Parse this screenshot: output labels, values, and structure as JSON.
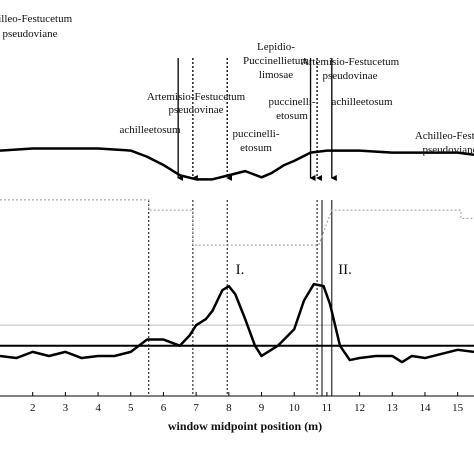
{
  "chart_data": {
    "type": "line",
    "x_label": "window midpoint position (m)",
    "xlim": [
      1,
      15.5
    ],
    "xticks": [
      2,
      3,
      4,
      5,
      6,
      7,
      8,
      9,
      10,
      11,
      12,
      13,
      14,
      15
    ],
    "ylim": [
      0,
      1.3
    ],
    "reference_lines": [
      {
        "value": 0.24,
        "color": "#000000",
        "width": 2
      },
      {
        "value": 0.34,
        "color": "#bbbbbb",
        "width": 1
      }
    ],
    "vlines": [
      {
        "x": 5.55,
        "style": "dotted"
      },
      {
        "x": 6.9,
        "style": "dotted"
      },
      {
        "x": 7.95,
        "style": "dotted"
      },
      {
        "x": 10.7,
        "style": "dotted"
      },
      {
        "x": 10.85,
        "style": "solid"
      },
      {
        "x": 11.15,
        "style": "solid"
      }
    ],
    "arrows": [
      {
        "x": 6.45,
        "style": "solid"
      },
      {
        "x": 6.9,
        "style": "dotted"
      },
      {
        "x": 7.95,
        "style": "dotted"
      },
      {
        "x": 10.5,
        "style": "solid"
      },
      {
        "x": 10.7,
        "style": "dotted"
      },
      {
        "x": 11.15,
        "style": "solid"
      }
    ],
    "series": [
      {
        "color": "#000000",
        "width": 2.5,
        "style": "solid",
        "x": [
          1,
          2,
          3,
          4,
          5,
          5.5,
          6,
          6.5,
          7,
          7.5,
          8,
          8.5,
          9,
          9.3,
          9.7,
          10,
          10.5,
          11,
          12,
          13,
          14,
          15,
          15.5
        ],
        "values": [
          1.19,
          1.2,
          1.2,
          1.2,
          1.19,
          1.16,
          1.12,
          1.07,
          1.05,
          1.05,
          1.07,
          1.09,
          1.06,
          1.08,
          1.12,
          1.14,
          1.18,
          1.19,
          1.19,
          1.18,
          1.18,
          1.18,
          1.17
        ]
      },
      {
        "color": "#000000",
        "width": 2.5,
        "style": "solid",
        "x": [
          1,
          1.5,
          2,
          2.5,
          3,
          3.5,
          4,
          4.5,
          5,
          5.5,
          6,
          6.5,
          6.8,
          7,
          7.3,
          7.5,
          7.8,
          8,
          8.2,
          8.5,
          8.8,
          9,
          9.5,
          10,
          10.3,
          10.6,
          10.9,
          11.1,
          11.4,
          11.7,
          12,
          12.5,
          13,
          13.3,
          13.6,
          14,
          14.5,
          15,
          15.5
        ],
        "values": [
          0.19,
          0.18,
          0.21,
          0.19,
          0.21,
          0.18,
          0.19,
          0.19,
          0.21,
          0.27,
          0.27,
          0.24,
          0.29,
          0.34,
          0.37,
          0.41,
          0.51,
          0.53,
          0.49,
          0.37,
          0.24,
          0.19,
          0.24,
          0.32,
          0.46,
          0.54,
          0.53,
          0.44,
          0.24,
          0.17,
          0.18,
          0.19,
          0.19,
          0.16,
          0.19,
          0.18,
          0.2,
          0.22,
          0.21
        ]
      },
      {
        "color": "#999999",
        "width": 1,
        "style": "dotted",
        "x": [
          1,
          5.55,
          5.55,
          6.9,
          6.9,
          10.75,
          11.15,
          15.1,
          15.1,
          15.5
        ],
        "values": [
          0.95,
          0.95,
          0.9,
          0.9,
          0.73,
          0.73,
          0.9,
          0.9,
          0.86,
          0.86
        ]
      }
    ]
  },
  "annotations": {
    "left": [
      "chilleo-Festucetum",
      "pseudoviane"
    ],
    "lepidio": [
      "Lepidio-",
      "Puccinellietum",
      "limosae"
    ],
    "artemisio_right": [
      "Artemisio-Festucetum",
      "pseudovinae"
    ],
    "artemisio_center": [
      "Artemisio-Festucetum",
      "pseudovinae"
    ],
    "puccinelli_right": [
      "puccinelli-",
      "etosum"
    ],
    "achill_right": "achilleetosum",
    "achill_left": "achilleetosum",
    "puccinelli_center": [
      "puccinelli-",
      "etosum"
    ],
    "right": [
      "Achilleo-Festuc",
      "pseudoviane"
    ],
    "peak1": "I.",
    "peak2": "II."
  }
}
